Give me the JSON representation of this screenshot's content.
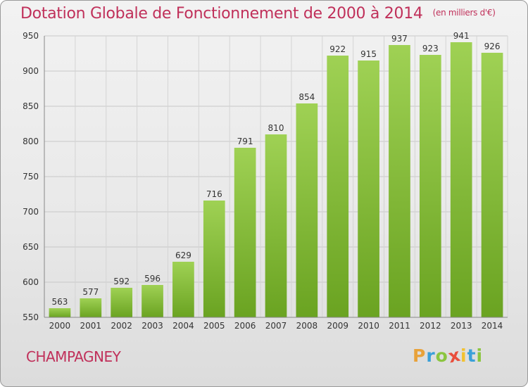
{
  "header": {
    "title": "Dotation Globale de Fonctionnement de 2000 à 2014",
    "subtitle": "(en milliers d'€)"
  },
  "footer": {
    "commune": "CHAMPAGNEY",
    "logo_letters": [
      "P",
      "r",
      "o",
      "x",
      "i",
      "t",
      "i"
    ],
    "logo_colors": [
      "#e8a23a",
      "#3aa0d8",
      "#8bc53f",
      "#e94e3c",
      "#f2c230",
      "#3aa0d8",
      "#8bc53f"
    ]
  },
  "chart_data": {
    "type": "bar",
    "categories": [
      "2000",
      "2001",
      "2002",
      "2003",
      "2004",
      "2005",
      "2006",
      "2007",
      "2008",
      "2009",
      "2010",
      "2011",
      "2012",
      "2013",
      "2014"
    ],
    "values": [
      563,
      577,
      592,
      596,
      629,
      716,
      791,
      810,
      854,
      922,
      915,
      937,
      923,
      941,
      926
    ],
    "title": "Dotation Globale de Fonctionnement de 2000 à 2014",
    "ylim": [
      550,
      950
    ],
    "yticks": [
      550,
      600,
      650,
      700,
      750,
      800,
      850,
      900,
      950
    ],
    "grid": true,
    "bar_color_top": "#9fd154",
    "bar_color_bottom": "#6aa321"
  }
}
